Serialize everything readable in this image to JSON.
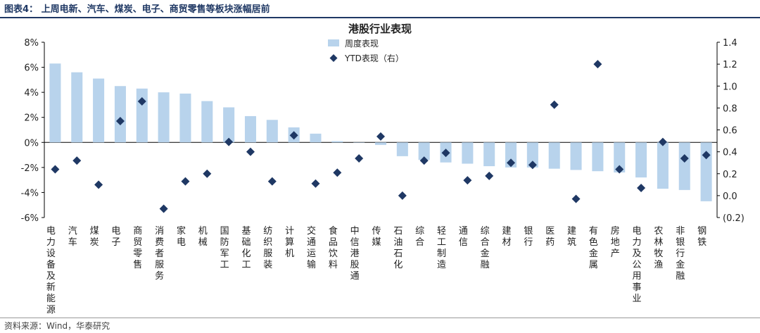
{
  "figure": {
    "title": "图表4：  上周电新、汽车、煤炭、电子、商贸零售等板块涨幅居前",
    "source": "资料来源：Wind，华泰研究"
  },
  "chart_data": {
    "type": "bar",
    "title": "港股行业表现",
    "categories": [
      "电力设备及新能源",
      "汽车",
      "煤炭",
      "电子",
      "商贸零售",
      "消费者服务",
      "家电",
      "机械",
      "国防军工",
      "基础化工",
      "纺织服装",
      "计算机",
      "交通运输",
      "食品饮料",
      "中信港股通",
      "传媒",
      "石油石化",
      "综合",
      "轻工制造",
      "通信",
      "综合金融",
      "建材",
      "银行",
      "医药",
      "建筑",
      "有色金属",
      "房地产",
      "电力及公用事业",
      "农林牧渔",
      "非银行金融",
      "钢铁"
    ],
    "series": [
      {
        "name": "周度表现",
        "type": "bar",
        "axis": "left",
        "unit": "%",
        "color": "#b8d3ec",
        "values": [
          6.3,
          5.6,
          5.1,
          4.5,
          4.3,
          4.0,
          3.9,
          3.3,
          2.8,
          2.1,
          1.8,
          1.2,
          0.7,
          0.1,
          0.0,
          -0.2,
          -1.1,
          -1.4,
          -1.6,
          -1.7,
          -1.9,
          -2.0,
          -2.0,
          -2.1,
          -2.2,
          -2.3,
          -2.4,
          -2.8,
          -3.7,
          -3.8,
          -4.7
        ]
      },
      {
        "name": "YTD表现（右）",
        "type": "scatter",
        "axis": "right",
        "color": "#1f3864",
        "values": [
          0.24,
          0.32,
          0.1,
          0.68,
          0.86,
          -0.12,
          0.13,
          0.2,
          0.49,
          0.4,
          0.13,
          0.55,
          0.11,
          0.21,
          0.34,
          0.54,
          0.0,
          0.32,
          0.39,
          0.14,
          0.18,
          0.3,
          0.28,
          0.83,
          -0.03,
          1.2,
          0.24,
          0.07,
          0.49,
          0.34,
          0.37
        ]
      }
    ],
    "left_axis": {
      "ylim": [
        -6,
        8
      ],
      "ticks": [
        -6,
        -4,
        -2,
        0,
        2,
        4,
        6,
        8
      ],
      "tick_labels": [
        "-6%",
        "-4%",
        "-2%",
        "0%",
        "2%",
        "4%",
        "6%",
        "8%"
      ]
    },
    "right_axis": {
      "ylim": [
        -0.2,
        1.4
      ],
      "ticks": [
        -0.2,
        0.0,
        0.2,
        0.4,
        0.6,
        0.8,
        1.0,
        1.2,
        1.4
      ],
      "tick_labels": [
        "(0.2)",
        "0.0",
        "0.2",
        "0.4",
        "0.6",
        "0.8",
        "1.0",
        "1.2",
        "1.4"
      ]
    },
    "grid": false,
    "legend": "top-center"
  }
}
